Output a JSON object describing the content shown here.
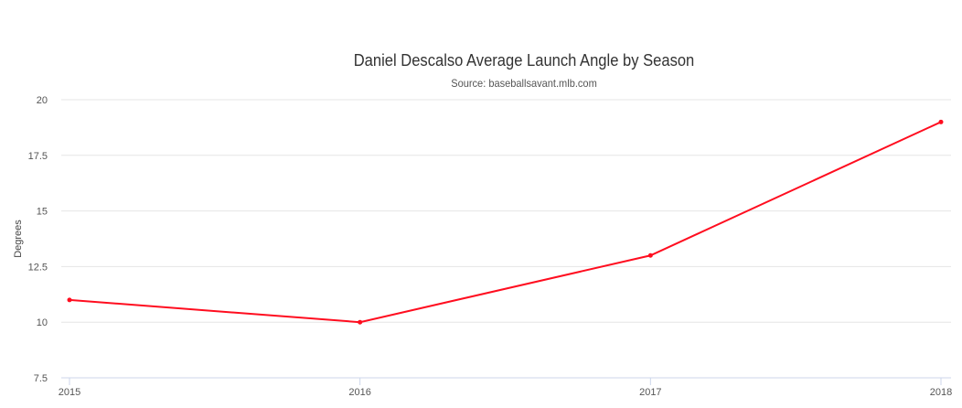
{
  "chart_data": {
    "type": "line",
    "title": "Daniel Descalso Average Launch Angle by Season",
    "subtitle": "Source: baseballsavant.mlb.com",
    "xlabel": "",
    "ylabel": "Degrees",
    "categories": [
      "2015",
      "2016",
      "2017",
      "2018"
    ],
    "series": [
      {
        "name": "Average Launch Angle",
        "values": [
          11,
          10,
          13,
          19
        ],
        "color": "#ff0d1f"
      }
    ],
    "ylim": [
      7.5,
      20
    ],
    "yticks": [
      "7.5",
      "10",
      "12.5",
      "15",
      "17.5",
      "20"
    ],
    "grid": true,
    "legend": "none"
  }
}
